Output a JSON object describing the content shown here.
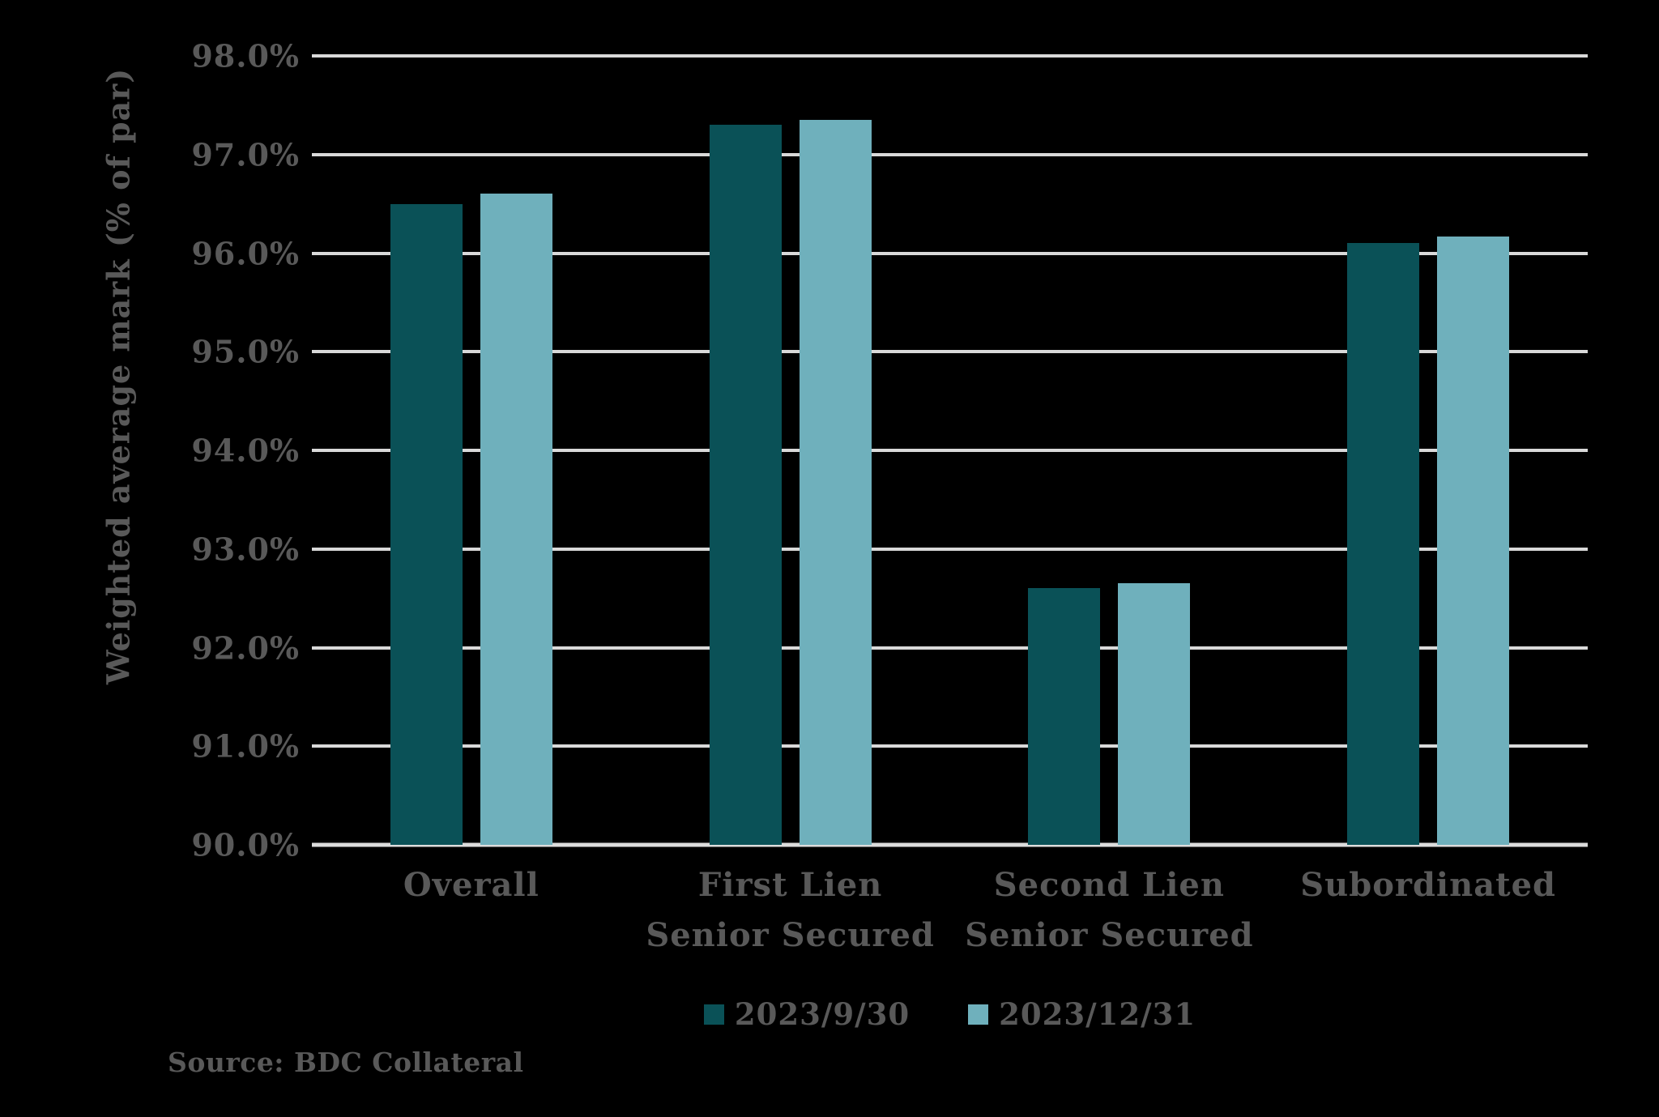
{
  "source": "Source: BDC Collateral",
  "colors": {
    "background": "#000000",
    "text": "#595959",
    "gridline": "#d9d9d9",
    "series_1": "#0a5157",
    "series_2": "#6fb0bc"
  },
  "chart_data": {
    "type": "bar",
    "title": "",
    "ylabel": "Weighted average mark (% of par)",
    "xlabel": "",
    "ylim": [
      90,
      98
    ],
    "grid": "horizontal",
    "legend_position": "bottom",
    "categories": [
      "Overall",
      "First Lien Senior Secured",
      "Second Lien Senior Secured",
      "Subordinated"
    ],
    "series": [
      {
        "name": "2023/9/30",
        "color": "#0a5157",
        "values": [
          96.5,
          97.3,
          92.6,
          96.1
        ]
      },
      {
        "name": "2023/12/31",
        "color": "#6fb0bc",
        "values": [
          96.6,
          97.35,
          92.65,
          96.17
        ]
      }
    ],
    "y_ticks": [
      {
        "value": 98,
        "label": "98.0%"
      },
      {
        "value": 97,
        "label": "97.0%"
      },
      {
        "value": 96,
        "label": "96.0%"
      },
      {
        "value": 95,
        "label": "95.0%"
      },
      {
        "value": 94,
        "label": "94.0%"
      },
      {
        "value": 93,
        "label": "93.0%"
      },
      {
        "value": 92,
        "label": "92.0%"
      },
      {
        "value": 91,
        "label": "91.0%"
      },
      {
        "value": 90,
        "label": "90.0%"
      }
    ]
  }
}
